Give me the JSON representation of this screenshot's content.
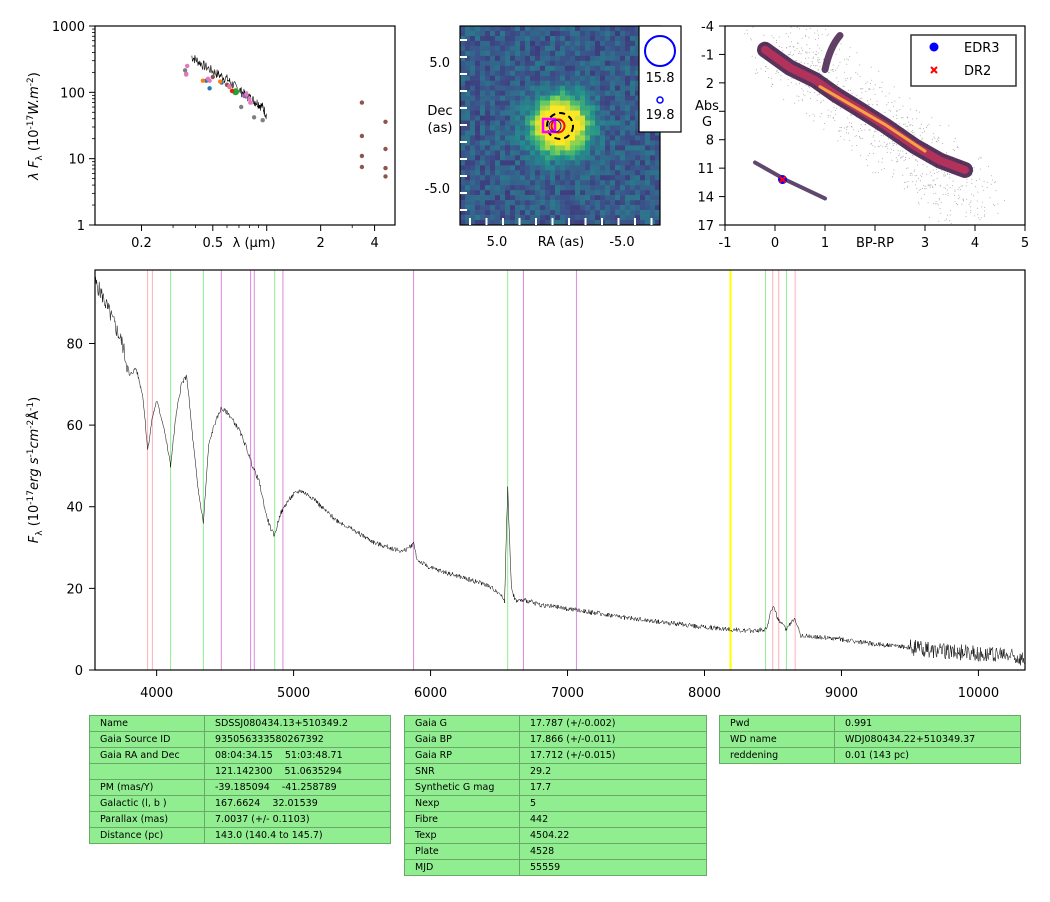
{
  "chart_data": [
    {
      "type": "scatter",
      "panel": "sed",
      "xscale": "log",
      "yscale": "log",
      "xlim": [
        0.11,
        5.2
      ],
      "ylim": [
        1,
        1000
      ],
      "xticklabels": [
        "0.2",
        "0.5",
        "$\\lambda$ ($\\mu$m)",
        "2",
        "4"
      ],
      "yticklabels": [
        "1",
        "10",
        "100",
        "1000"
      ],
      "ylabel": "$\\lambda F_{\\lambda}$ ($10^{-17}W.m^{-2}$)",
      "series": [
        {
          "color": "#1f77b4",
          "x": [
            0.46,
            0.48,
            0.56
          ],
          "y": [
            150,
            115,
            140
          ]
        },
        {
          "color": "#ff7f0e",
          "x": [
            0.44,
            0.55,
            0.62
          ],
          "y": [
            150,
            145,
            120
          ]
        },
        {
          "color": "#2ca02c",
          "x": [
            0.67
          ],
          "y": [
            102
          ]
        },
        {
          "color": "#d62728",
          "x": [
            0.64
          ],
          "y": [
            105
          ]
        },
        {
          "color": "#9467bd",
          "x": [
            0.75
          ],
          "y": [
            88
          ]
        },
        {
          "color": "#8c564b",
          "x": [
            0.5,
            0.6,
            3.4,
            3.4,
            3.4,
            3.4,
            4.6,
            4.6,
            4.6,
            4.6
          ],
          "y": [
            170,
            130,
            70,
            22,
            11,
            7.5,
            36,
            14,
            7.2,
            5.4
          ]
        },
        {
          "color": "#e377c2",
          "x": [
            0.355,
            0.355,
            0.36,
            0.47,
            0.48,
            0.62,
            0.77,
            0.8,
            0.81
          ],
          "y": [
            185,
            190,
            250,
            160,
            150,
            125,
            95,
            80,
            70
          ]
        },
        {
          "color": "#7f7f7f",
          "x": [
            0.35,
            0.72,
            0.85,
            0.95
          ],
          "y": [
            215,
            60,
            42,
            38
          ]
        }
      ],
      "spectrum": {
        "x": [
          0.38,
          0.41,
          0.45,
          0.5,
          0.55,
          0.6,
          0.65,
          0.7,
          0.75,
          0.8,
          0.85,
          0.9,
          0.95,
          1.0
        ],
        "y": [
          350,
          300,
          250,
          210,
          180,
          160,
          130,
          110,
          95,
          85,
          75,
          68,
          60,
          45
        ]
      }
    },
    {
      "type": "heatmap",
      "panel": "image",
      "xlabel": "RA (as)",
      "ylabel": "Dec\n(as)",
      "xticklabels": [
        "5.0",
        "-5.0"
      ],
      "yticklabels": [
        "5.0",
        "-5.0"
      ],
      "legend": [
        {
          "label": "15.8"
        },
        {
          "label": "19.8"
        }
      ]
    },
    {
      "type": "scatter",
      "panel": "hrd",
      "xlabel": "BP-RP",
      "ylabel": "Abs\nG",
      "xlim": [
        -1,
        5
      ],
      "ylim": [
        17,
        -4
      ],
      "xticklabels": [
        "-1",
        "0",
        "1",
        "BP-RP",
        "3",
        "4",
        "5"
      ],
      "yticklabels": [
        "-4",
        "-1",
        "2",
        "",
        "8",
        "11",
        "14",
        "17"
      ],
      "series": [
        {
          "name": "EDR3",
          "color": "#0000ff",
          "marker": "o",
          "x": [
            0.15
          ],
          "y": [
            12.2
          ]
        },
        {
          "name": "DR2",
          "color": "#ff0000",
          "marker": "x",
          "x": [
            0.15
          ],
          "y": [
            12.2
          ]
        }
      ]
    },
    {
      "type": "line",
      "panel": "spectrum",
      "xlim": [
        3550,
        10340
      ],
      "ylim": [
        0,
        98
      ],
      "xticklabels": [
        "4000",
        "5000",
        "6000",
        "7000",
        "8000",
        "9000",
        "10000"
      ],
      "yticklabels": [
        "0",
        "20",
        "40",
        "60",
        "80"
      ],
      "ylabel": "F$_{\\lambda}$ ($10^{-17}erg\\ s^{-1}cm^{-2}\\AA^{-1}$)",
      "lines": {
        "pink": [
          3934,
          3969,
          8498,
          8542,
          8662
        ],
        "green": [
          4102,
          4341,
          4862,
          6563,
          8446,
          8598
        ],
        "violet": [
          4472,
          4686,
          4713,
          4922,
          5876,
          6678,
          7065
        ],
        "yellow": [
          8190
        ]
      },
      "spectrum": {
        "x": [
          3550,
          3600,
          3650,
          3700,
          3750,
          3800,
          3850,
          3900,
          3935,
          3970,
          4000,
          4050,
          4102,
          4140,
          4180,
          4220,
          4260,
          4300,
          4341,
          4380,
          4420,
          4470,
          4520,
          4560,
          4600,
          4650,
          4700,
          4750,
          4800,
          4840,
          4862,
          4900,
          4950,
          5000,
          5050,
          5100,
          5150,
          5200,
          5300,
          5400,
          5500,
          5600,
          5700,
          5800,
          5880,
          5900,
          6000,
          6100,
          6200,
          6300,
          6400,
          6500,
          6540,
          6563,
          6590,
          6620,
          6700,
          6800,
          7000,
          7200,
          7500,
          8000,
          8190,
          8300,
          8450,
          8500,
          8540,
          8600,
          8660,
          8700,
          9000,
          9200,
          9500,
          9800,
          10000,
          10200,
          10340
        ],
        "y": [
          95,
          92,
          88,
          84,
          80,
          72,
          74,
          67,
          54,
          62,
          66,
          60,
          50,
          62,
          70,
          72,
          58,
          45,
          36,
          55,
          60,
          64,
          63,
          61,
          59,
          55,
          50,
          46,
          38,
          34,
          33,
          38,
          41,
          43,
          44,
          43,
          42,
          40,
          37,
          35,
          33,
          31,
          30,
          29,
          31,
          27,
          25,
          24,
          23,
          22,
          21,
          19,
          17,
          45,
          20,
          17,
          17,
          16,
          15,
          14,
          12.5,
          10.5,
          10,
          9.5,
          10,
          16,
          12,
          10,
          13,
          8.5,
          7.5,
          6.5,
          5.5,
          4.5,
          4,
          3.5,
          3
        ]
      }
    }
  ],
  "tables": {
    "t1": [
      [
        "Name",
        "SDSSJ080434.13+510349.2"
      ],
      [
        "Gaia Source ID",
        "935056333580267392"
      ],
      [
        "Gaia RA and Dec",
        "08:04:34.15    51:03:48.71"
      ],
      [
        "",
        "121.142300    51.0635294"
      ],
      [
        "PM (mas/Y)",
        "-39.185094    -41.258789"
      ],
      [
        "Galactic (l, b )",
        "167.6624    32.01539"
      ],
      [
        "Parallax (mas)",
        "7.0037 (+/- 0.1103)"
      ],
      [
        "Distance (pc)",
        "143.0 (140.4 to 145.7)"
      ]
    ],
    "t2": [
      [
        "Gaia G",
        "17.787 (+/-0.002)"
      ],
      [
        "Gaia BP",
        "17.866 (+/-0.011)"
      ],
      [
        "Gaia RP",
        "17.712 (+/-0.015)"
      ],
      [
        "SNR",
        "29.2"
      ],
      [
        "Synthetic G mag",
        "17.7"
      ],
      [
        "Nexp",
        "5"
      ],
      [
        "Fibre",
        "442"
      ],
      [
        "Texp",
        "4504.22"
      ],
      [
        "Plate",
        "4528"
      ],
      [
        "MJD",
        "55559"
      ]
    ],
    "t3": [
      [
        "Pwd",
        "0.991"
      ],
      [
        "WD name",
        "WDJ080434.22+510349.37"
      ],
      [
        "reddening",
        "0.01 (143 pc)"
      ]
    ]
  }
}
